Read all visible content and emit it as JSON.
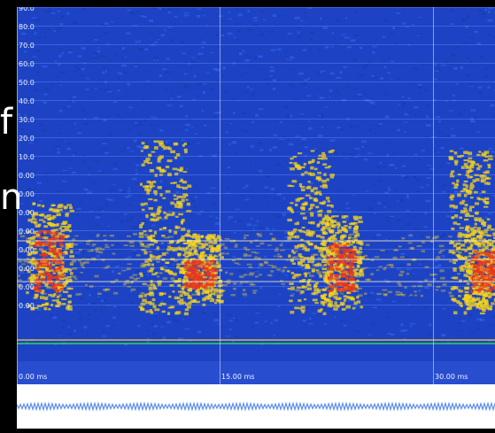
{
  "spectrogram": {
    "y_labels": [
      "90.0",
      "80.0",
      "70.0",
      "60.0",
      "50.0",
      "40.0",
      "30.0",
      "20.0",
      "10.0",
      "0.00",
      "0.00",
      "0.00",
      "0.00",
      "0.00",
      "0.00",
      "0.00",
      "0.00"
    ],
    "x_labels": [
      "0.00 ms",
      "15.00 ms",
      "30.00 ms"
    ],
    "colors": {
      "background": "#1d43c4",
      "low_energy": "#2f6cf0",
      "mid_energy": "#f4d21e",
      "high_energy": "#e63a1e",
      "baseline_line": "#d6b54a",
      "baseline_green": "#2bd65c"
    }
  },
  "waveform": {
    "color": "#5a8df0"
  },
  "overlay": {
    "glyph_1": "f",
    "glyph_2": "n"
  }
}
